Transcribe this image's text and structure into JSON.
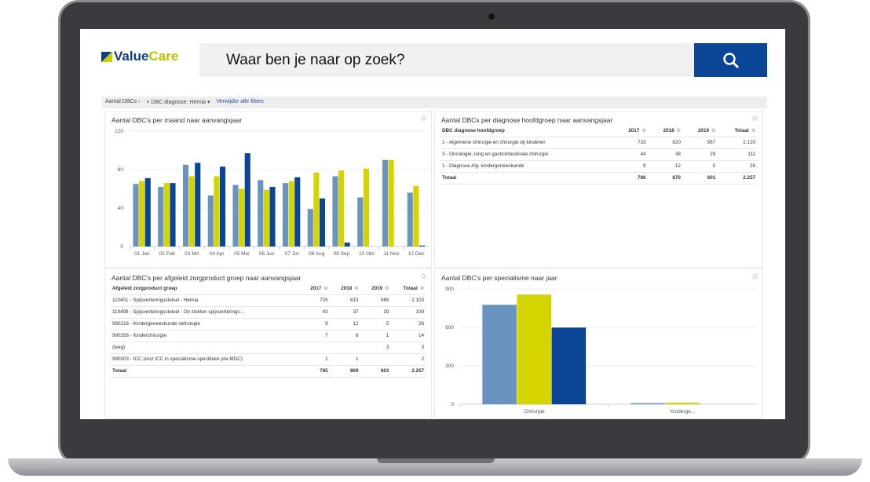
{
  "header": {
    "logo_text_1": "Value",
    "logo_text_2": "Care",
    "search_placeholder": "Waar ben je naar op zoek?",
    "search_icon": "search-icon"
  },
  "filters": {
    "crumb": "Aantal DBCs ›",
    "chip": "× DBC diagnose: Hernia ▾",
    "clear": "Verwijder alle filters"
  },
  "colors": {
    "2017": "#6a93c0",
    "2018": "#d4d400",
    "2019": "#0b4596"
  },
  "panel_diag": {
    "title": "Aantal DBCs per diagnose hoofdgroep naar aanvangsjaar",
    "headers": [
      "DBC diagnose hoofdgroep",
      "2017",
      "2018",
      "2019",
      "Totaal"
    ],
    "rows": [
      [
        "1 - Algemene chirurgie en chirurgie bij kinderen",
        "733",
        "820",
        "567",
        "2.120"
      ],
      [
        "3 - Oncologie, long en gastrointestinale chirurgie",
        "44",
        "38",
        "29",
        "111"
      ],
      [
        "1 - Diagnose Alg. kindergeneeskunde",
        "9",
        "12",
        "5",
        "26"
      ]
    ],
    "total": [
      "Totaal",
      "786",
      "870",
      "601",
      "2.257"
    ]
  },
  "panel_zorg": {
    "title": "Aantal DBC's per afgeleid zorgproduct groep naar aanvangsjaar",
    "headers": [
      "Afgeleid zorgproduct groep",
      "2017",
      "2018",
      "2019",
      "Totaal"
    ],
    "rows": [
      [
        "110401 - Spijsverteringsstelsel - Hernia",
        "725",
        "813",
        "565",
        "2.103"
      ],
      [
        "119499 - Spijsverteringsstelsel - Ov ziekten spijsverterings....",
        "43",
        "37",
        "29",
        "109"
      ],
      [
        "990216 - Kindergeneeskunde nefrologie",
        "9",
        "12",
        "5",
        "26"
      ],
      [
        "990356 - Kinderchirurgie",
        "7",
        "6",
        "1",
        "14"
      ],
      [
        "(leeg)",
        "",
        "",
        "3",
        "3"
      ],
      [
        "990003 - ICC (excl ICC in specialisme-specifieke pre-MDC)",
        "1",
        "1",
        "",
        "2"
      ]
    ],
    "total": [
      "Totaal",
      "785",
      "869",
      "603",
      "2.257"
    ]
  },
  "chart_data": [
    {
      "type": "bar",
      "title": "Aantal DBC's per maand naar aanvangsjaar",
      "ylim": [
        0,
        120
      ],
      "yticks": [
        "0",
        "40",
        "80",
        "120"
      ],
      "grid": true,
      "categories": [
        "01 Jan",
        "02 Feb",
        "03 Mrt",
        "04 Apr",
        "05 Mei",
        "06 Jun",
        "07 Jul",
        "08 Aug",
        "09 Sep",
        "10 Okt",
        "11 Nov",
        "12 Dec"
      ],
      "series": [
        {
          "values": [
            65,
            62,
            85,
            53,
            64,
            69,
            66,
            39,
            73,
            51,
            90,
            56
          ]
        },
        {
          "values": [
            68,
            66,
            73,
            73,
            60,
            59,
            68,
            77,
            79,
            81,
            90,
            63
          ]
        },
        {
          "values": [
            71,
            66,
            87,
            83,
            97,
            62,
            72,
            50,
            4,
            0,
            0,
            1
          ]
        }
      ]
    },
    {
      "type": "bar",
      "title": "Aantal DBC's per specialisme naar jaar",
      "ylim": [
        0,
        900
      ],
      "yticks": [
        "0",
        "300",
        "600",
        "900"
      ],
      "grid": true,
      "categories": [
        "Chirurgie",
        "Kinderge..."
      ],
      "series": [
        {
          "values": [
            776,
            9
          ]
        },
        {
          "values": [
            856,
            12
          ]
        },
        {
          "values": [
            598,
            0
          ]
        }
      ]
    }
  ]
}
